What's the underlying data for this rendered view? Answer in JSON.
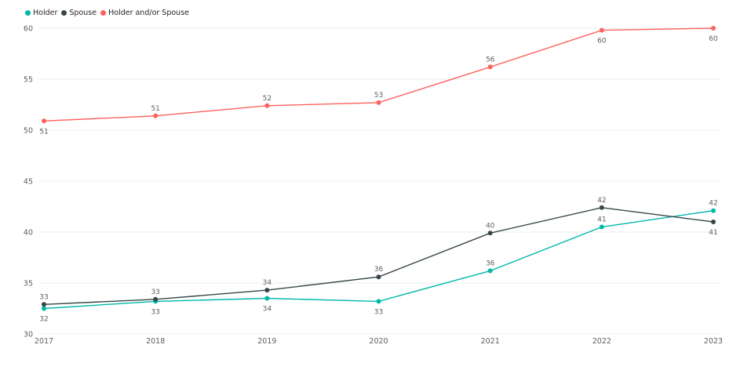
{
  "chart_data": {
    "type": "line",
    "title": "",
    "xlabel": "",
    "ylabel": "",
    "x": [
      "2017",
      "2018",
      "2019",
      "2020",
      "2021",
      "2022",
      "2023"
    ],
    "ylim": [
      30,
      60
    ],
    "yticks": [
      "30",
      "35",
      "40",
      "45",
      "50",
      "55",
      "60"
    ],
    "grid": true,
    "legend_position": "top-left",
    "series": [
      {
        "name": "Holder",
        "color": "#01b8aa",
        "values": [
          32.5,
          33.2,
          33.5,
          33.2,
          36.2,
          40.5,
          42.1
        ],
        "labels": [
          "32",
          "33",
          "34",
          "33",
          "36",
          "41",
          "42"
        ]
      },
      {
        "name": "Spouse",
        "color": "#374649",
        "values": [
          32.9,
          33.4,
          34.3,
          35.6,
          39.9,
          42.4,
          41.0
        ],
        "labels": [
          "33",
          "33",
          "34",
          "36",
          "40",
          "42",
          "41"
        ]
      },
      {
        "name": "Holder and/or Spouse",
        "color": "#fd625e",
        "values": [
          50.9,
          51.4,
          52.4,
          52.7,
          56.2,
          59.8,
          60.0
        ],
        "labels": [
          "51",
          "51",
          "52",
          "53",
          "56",
          "60",
          "60"
        ]
      }
    ]
  }
}
